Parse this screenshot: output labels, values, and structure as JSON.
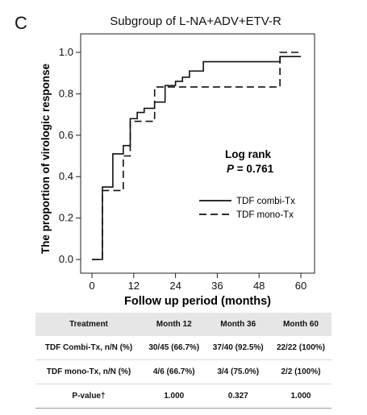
{
  "panel_letter": "C",
  "chart_data": {
    "type": "line",
    "title": "Subgroup of L-NA+ADV+ETV-R",
    "xlabel": "Follow up period (months)",
    "ylabel": "The proportion of virologic response",
    "xlim": [
      0,
      60
    ],
    "ylim": [
      0,
      1.0
    ],
    "x_ticks": [
      0,
      12,
      24,
      36,
      48,
      60
    ],
    "y_ticks": [
      "0.0",
      "0.2",
      "0.4",
      "0.6",
      "0.8",
      "1.0"
    ],
    "annotation": {
      "line1": "Log rank",
      "line2_prefix": "P",
      "line2_rest": " = 0.761"
    },
    "legend_position": "right",
    "series": [
      {
        "name": "TDF combi-Tx",
        "style": "solid",
        "color": "#111111",
        "steps": [
          [
            0,
            0
          ],
          [
            3,
            0.35
          ],
          [
            6,
            0.51
          ],
          [
            9,
            0.55
          ],
          [
            11,
            0.68
          ],
          [
            13,
            0.71
          ],
          [
            15,
            0.73
          ],
          [
            18,
            0.76
          ],
          [
            21,
            0.84
          ],
          [
            24,
            0.86
          ],
          [
            26,
            0.88
          ],
          [
            28,
            0.91
          ],
          [
            32,
            0.955
          ],
          [
            54,
            0.98
          ],
          [
            60,
            0.98
          ]
        ]
      },
      {
        "name": "TDF mono-Tx",
        "style": "dashed",
        "color": "#111111",
        "steps": [
          [
            0,
            0
          ],
          [
            3,
            0.333
          ],
          [
            9,
            0.5
          ],
          [
            11,
            0.667
          ],
          [
            18,
            0.833
          ],
          [
            54,
            1.0
          ],
          [
            60,
            1.0
          ]
        ]
      }
    ]
  },
  "table": {
    "headers": [
      "Treatment",
      "Month 12",
      "Month 36",
      "Month 60"
    ],
    "rows": [
      [
        "TDF Combi-Tx, n/N (%)",
        "30/45 (66.7%)",
        "37/40 (92.5%)",
        "22/22 (100%)"
      ],
      [
        "TDF mono-Tx, n/N (%)",
        "4/6 (66.7%)",
        "3/4 (75.0%)",
        "2/2 (100%)"
      ],
      [
        "P-value†",
        "1.000",
        "0.327",
        "1.000"
      ]
    ]
  }
}
